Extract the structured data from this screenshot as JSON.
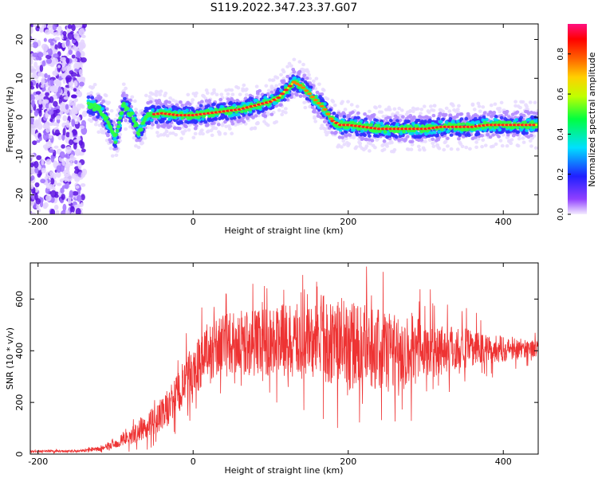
{
  "title": "S119.2022.347.23.37.G07",
  "chart_data": [
    {
      "type": "heatmap",
      "xlabel": "Height of straight line (km)",
      "ylabel": "Frequency (Hz)",
      "xlim": [
        -210,
        445
      ],
      "ylim": [
        -25,
        24
      ],
      "xticks": [
        -200,
        0,
        200,
        400
      ],
      "yticks": [
        -20,
        -10,
        0,
        10,
        20
      ],
      "colorbar": {
        "label": "Normalized spectral amplitude",
        "range": [
          0,
          0.95
        ],
        "ticks": [
          0.0,
          0.2,
          0.4,
          0.6,
          0.8
        ]
      },
      "ridge": {
        "description_free": true,
        "x": [
          -130,
          -115,
          -100,
          -90,
          -80,
          -70,
          -60,
          -40,
          -20,
          0,
          20,
          40,
          60,
          80,
          100,
          110,
          120,
          130,
          140,
          150,
          160,
          170,
          180,
          190,
          200,
          220,
          240,
          260,
          280,
          300,
          320,
          340,
          360,
          380,
          400,
          420,
          440
        ],
        "y": [
          3,
          1,
          -6,
          3,
          1,
          -4,
          0.5,
          1,
          0.5,
          0.5,
          1,
          1.5,
          2,
          3,
          4,
          5,
          7,
          9,
          8,
          6,
          4,
          2,
          -1,
          -2,
          -2,
          -2.5,
          -3,
          -3,
          -3,
          -3,
          -2.5,
          -2.5,
          -2.5,
          -2,
          -2,
          -2,
          -2
        ]
      },
      "noise_region_x": [
        -210,
        -140
      ]
    },
    {
      "type": "line",
      "xlabel": "Height of straight line (km)",
      "ylabel": "SNR (10 * v/v)",
      "xlim": [
        -210,
        445
      ],
      "ylim": [
        0,
        740
      ],
      "xticks": [
        -200,
        0,
        200,
        400
      ],
      "yticks": [
        0,
        200,
        400,
        600
      ],
      "series": [
        {
          "color": "#ee3333",
          "envelope_x": [
            -210,
            -150,
            -120,
            -100,
            -80,
            -60,
            -40,
            -20,
            0,
            20,
            40,
            60,
            100,
            140,
            180,
            200,
            240,
            280,
            320,
            360,
            400,
            445
          ],
          "envelope_mean": [
            10,
            12,
            20,
            40,
            70,
            110,
            150,
            230,
            320,
            400,
            420,
            430,
            440,
            440,
            430,
            420,
            410,
            400,
            410,
            410,
            405,
            410
          ],
          "envelope_spread": [
            5,
            6,
            10,
            20,
            40,
            60,
            80,
            110,
            130,
            140,
            150,
            160,
            170,
            180,
            200,
            220,
            200,
            180,
            130,
            90,
            60,
            40
          ]
        }
      ]
    }
  ]
}
